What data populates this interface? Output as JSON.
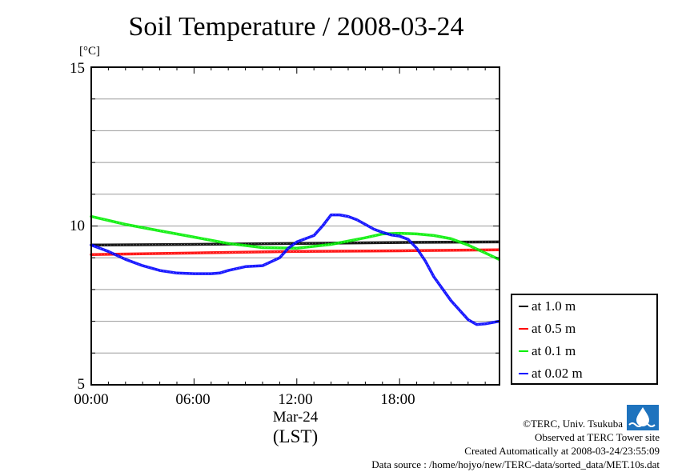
{
  "chart_data": {
    "type": "line",
    "title": "Soil Temperature / 2008-03-24",
    "y_unit": "[°C]",
    "xlabel": "(LST)",
    "x_date_label": "Mar-24",
    "ylim": [
      5,
      15
    ],
    "xlim": [
      0,
      23.833
    ],
    "yticks": [
      "15",
      "10",
      "5"
    ],
    "xticks": [
      "00:00",
      "06:00",
      "12:00",
      "18:00"
    ],
    "grid": true,
    "legend_position": "bottom-right",
    "series": [
      {
        "name": "at 1.0 m",
        "color": "#000000",
        "x": [
          0,
          6,
          12,
          18,
          23.8
        ],
        "y": [
          9.4,
          9.42,
          9.45,
          9.48,
          9.5
        ]
      },
      {
        "name": "at 0.5 m",
        "color": "#ff0000",
        "x": [
          0,
          6,
          12,
          18,
          23.8
        ],
        "y": [
          9.1,
          9.15,
          9.2,
          9.22,
          9.25
        ]
      },
      {
        "name": "at 0.1 m",
        "color": "#00ee00",
        "x": [
          0,
          2,
          4,
          6,
          8,
          10,
          12,
          14,
          16,
          17,
          18,
          19,
          20,
          21,
          22,
          23,
          23.8
        ],
        "y": [
          10.3,
          10.05,
          9.85,
          9.65,
          9.45,
          9.32,
          9.3,
          9.42,
          9.63,
          9.75,
          9.77,
          9.75,
          9.7,
          9.6,
          9.4,
          9.15,
          8.95
        ]
      },
      {
        "name": "at 0.02 m",
        "color": "#0000ff",
        "x": [
          0,
          1,
          2,
          3,
          4,
          5,
          6,
          7,
          7.5,
          8,
          9,
          10,
          11,
          11.5,
          12,
          12.5,
          13,
          13.5,
          14,
          14.5,
          15,
          15.5,
          16,
          16.5,
          17,
          17.5,
          18,
          18.5,
          19,
          19.5,
          20,
          21,
          22,
          22.5,
          23,
          23.8
        ],
        "y": [
          9.4,
          9.2,
          8.95,
          8.75,
          8.6,
          8.52,
          8.5,
          8.5,
          8.52,
          8.6,
          8.72,
          8.75,
          9.0,
          9.3,
          9.5,
          9.6,
          9.7,
          10.0,
          10.35,
          10.35,
          10.3,
          10.2,
          10.05,
          9.9,
          9.8,
          9.72,
          9.68,
          9.58,
          9.3,
          8.9,
          8.4,
          7.65,
          7.05,
          6.9,
          6.92,
          7.0
        ]
      }
    ]
  },
  "credits": {
    "copyright": "©TERC, Univ. Tsukuba",
    "site": "Observed at TERC Tower site",
    "created": "Created Automatically at 2008-03-24/23:55:09",
    "source": "Data source : /home/hojyo/new/TERC-data/sorted_data/MET.10s.dat"
  },
  "logo": {
    "text": "TERC",
    "color": "#1e73be"
  }
}
